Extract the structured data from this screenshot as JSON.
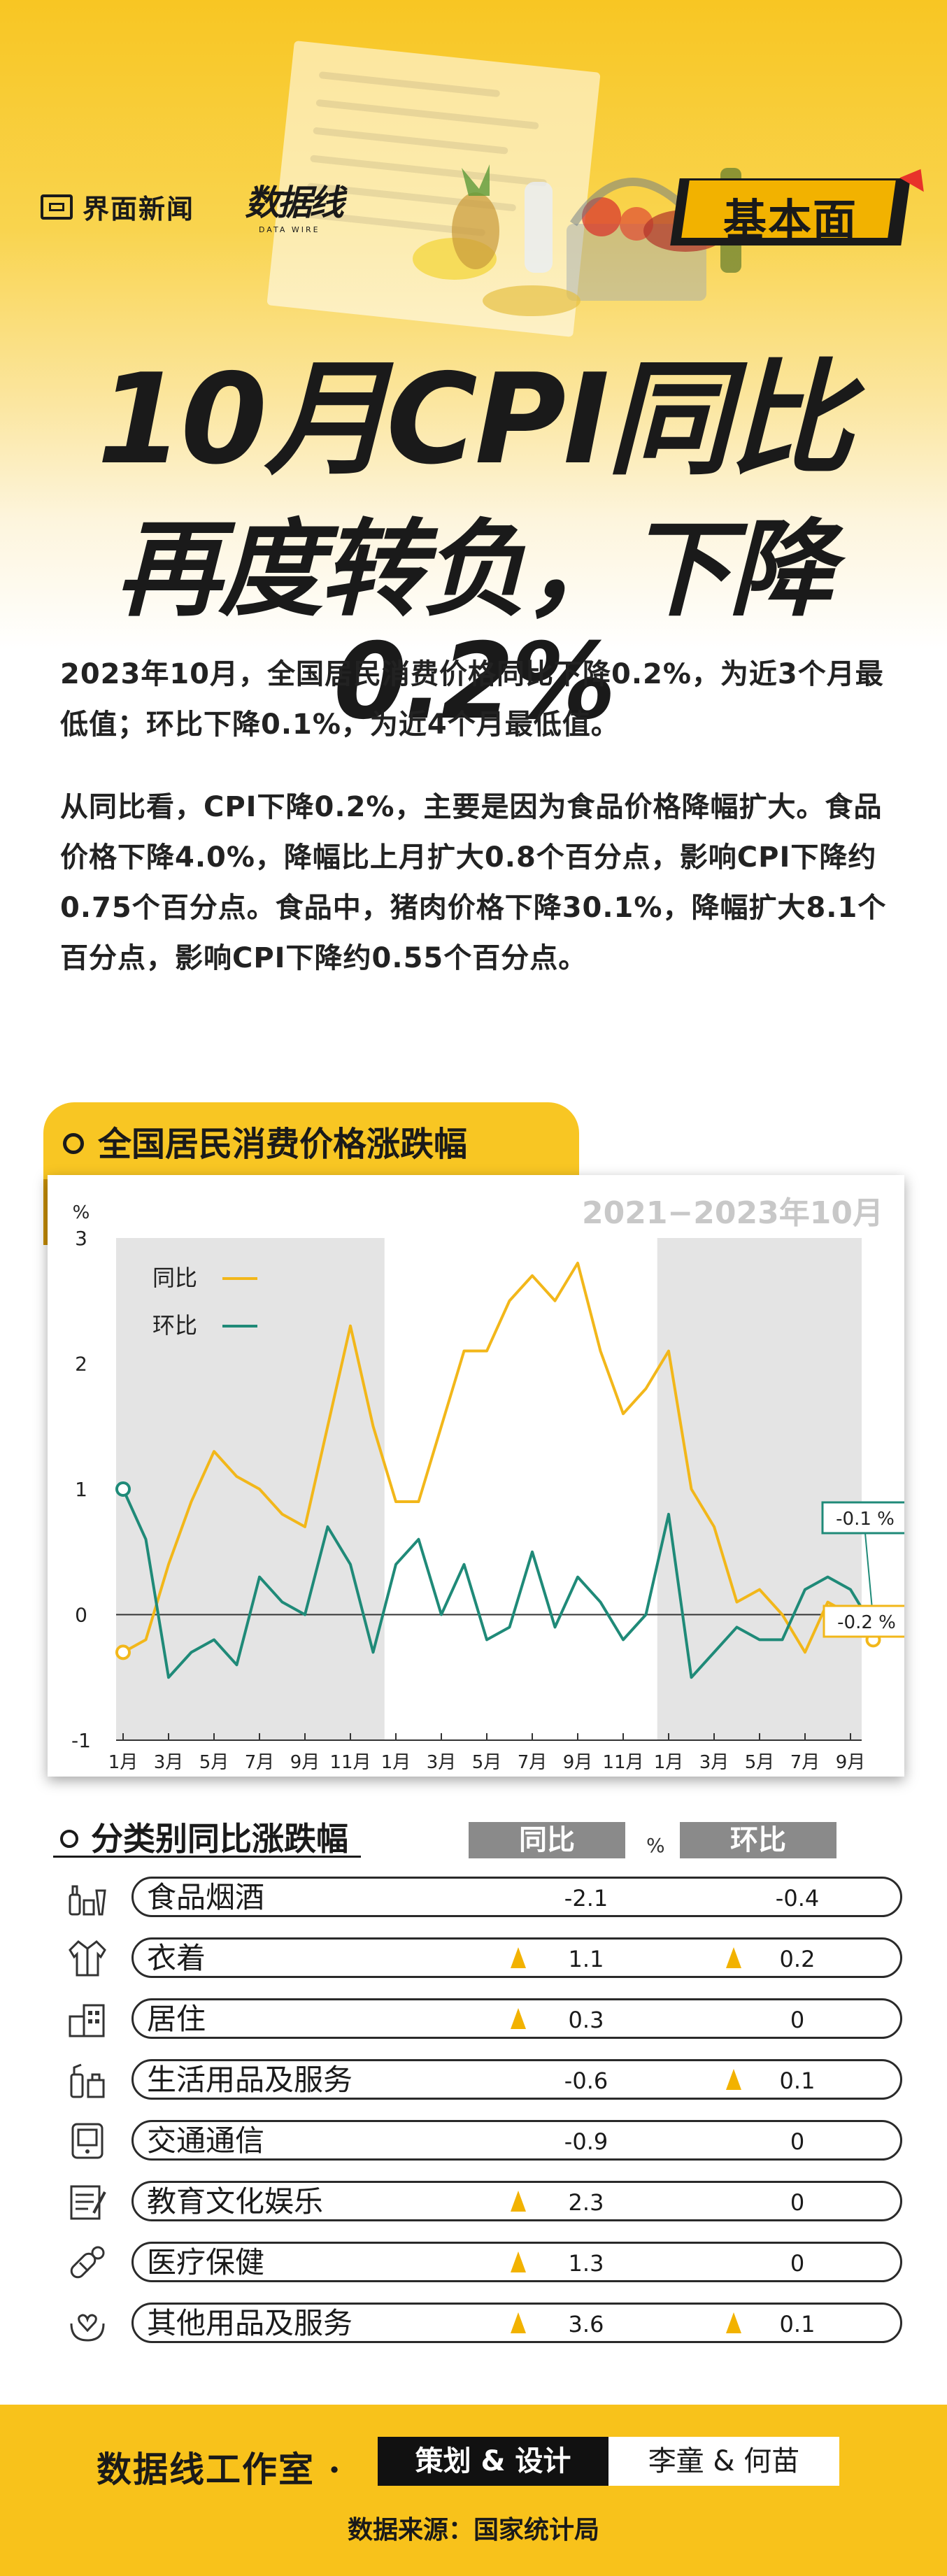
{
  "header": {
    "brand_left": "界面新闻",
    "brand_right": "数据线",
    "brand_right_sub": "DATA WIRE",
    "tag": "基本面",
    "title_line1": "10月CPI同比",
    "title_line2": "再度转负，下降0.2%"
  },
  "intro": {
    "paragraph1": "2023年10月，全国居民消费价格同比下降0.2%，为近3个月最低值；环比下降0.1%，为近4个月最低值。",
    "paragraph2": "从同比看，CPI下降0.2%，主要是因为食品价格降幅扩大。食品价格下降4.0%，降幅比上月扩大0.8个百分点，影响CPI下降约0.75个百分点。食品中，猪肉价格下降30.1%，降幅扩大8.1个百分点，影响CPI下降约0.55个百分点。"
  },
  "section1": {
    "title": "全国居民消费价格涨跌幅",
    "range_label": "2021−2023年10月"
  },
  "chart_data": {
    "type": "line",
    "ylabel": "%",
    "ylim": [
      -1,
      3
    ],
    "yticks": [
      "3",
      "2",
      "1",
      "0",
      "-1"
    ],
    "x_ticks": [
      "1月",
      "3月",
      "5月",
      "7月",
      "9月",
      "11月",
      "1月",
      "3月",
      "5月",
      "7月",
      "9月",
      "11月",
      "1月",
      "3月",
      "5月",
      "7月",
      "9月"
    ],
    "years": [
      "2021",
      "2022",
      "2023"
    ],
    "shaded": "2021 and 2023",
    "grid": false,
    "legend_placement": "top-left",
    "series": [
      {
        "name": "同比",
        "color": "#f2b71a",
        "values": [
          -0.3,
          -0.2,
          0.4,
          0.9,
          1.3,
          1.1,
          1.0,
          0.8,
          0.7,
          1.5,
          2.3,
          1.5,
          0.9,
          0.9,
          1.5,
          2.1,
          2.1,
          2.5,
          2.7,
          2.5,
          2.8,
          2.1,
          1.6,
          1.8,
          2.1,
          1.0,
          0.7,
          0.1,
          0.2,
          0.0,
          -0.3,
          0.1,
          0.0,
          -0.2
        ]
      },
      {
        "name": "环比",
        "color": "#1f8a78",
        "values": [
          1.0,
          0.6,
          -0.5,
          -0.3,
          -0.2,
          -0.4,
          0.3,
          0.1,
          0.0,
          0.7,
          0.4,
          -0.3,
          0.4,
          0.6,
          0.0,
          0.4,
          -0.2,
          -0.1,
          0.5,
          -0.1,
          0.3,
          0.1,
          -0.2,
          0.0,
          0.8,
          -0.5,
          -0.3,
          -0.1,
          -0.2,
          -0.2,
          0.2,
          0.3,
          0.2,
          -0.1
        ]
      }
    ],
    "annotations": [
      "-0.1 %",
      "-0.2 %"
    ]
  },
  "section2": {
    "title": "分类别同比涨跌幅",
    "col_yoy": "同比",
    "col_unit": "%",
    "col_mom": "环比",
    "rows": [
      {
        "icon": "food-drink-icon",
        "label": "食品烟酒",
        "yoy": "-2.1",
        "mom": "-0.4",
        "yoy_up": false,
        "mom_up": false
      },
      {
        "icon": "clothing-icon",
        "label": "衣着",
        "yoy": "1.1",
        "mom": "0.2",
        "yoy_up": true,
        "mom_up": true
      },
      {
        "icon": "housing-icon",
        "label": "居住",
        "yoy": "0.3",
        "mom": "0",
        "yoy_up": true,
        "mom_up": false
      },
      {
        "icon": "household-goods-icon",
        "label": "生活用品及服务",
        "yoy": "-0.6",
        "mom": "0.1",
        "yoy_up": false,
        "mom_up": true
      },
      {
        "icon": "phone-icon",
        "label": "交通通信",
        "yoy": "-0.9",
        "mom": "0",
        "yoy_up": false,
        "mom_up": false
      },
      {
        "icon": "education-icon",
        "label": "教育文化娱乐",
        "yoy": "2.3",
        "mom": "0",
        "yoy_up": true,
        "mom_up": false
      },
      {
        "icon": "medical-icon",
        "label": "医疗保健",
        "yoy": "1.3",
        "mom": "0",
        "yoy_up": true,
        "mom_up": false
      },
      {
        "icon": "other-goods-icon",
        "label": "其他用品及服务",
        "yoy": "3.6",
        "mom": "0.1",
        "yoy_up": true,
        "mom_up": true
      }
    ]
  },
  "footer": {
    "studio": "数据线工作室 ·",
    "role": "策划 & 设计",
    "names": "李童 & 何苗",
    "source": "数据来源：国家统计局"
  }
}
